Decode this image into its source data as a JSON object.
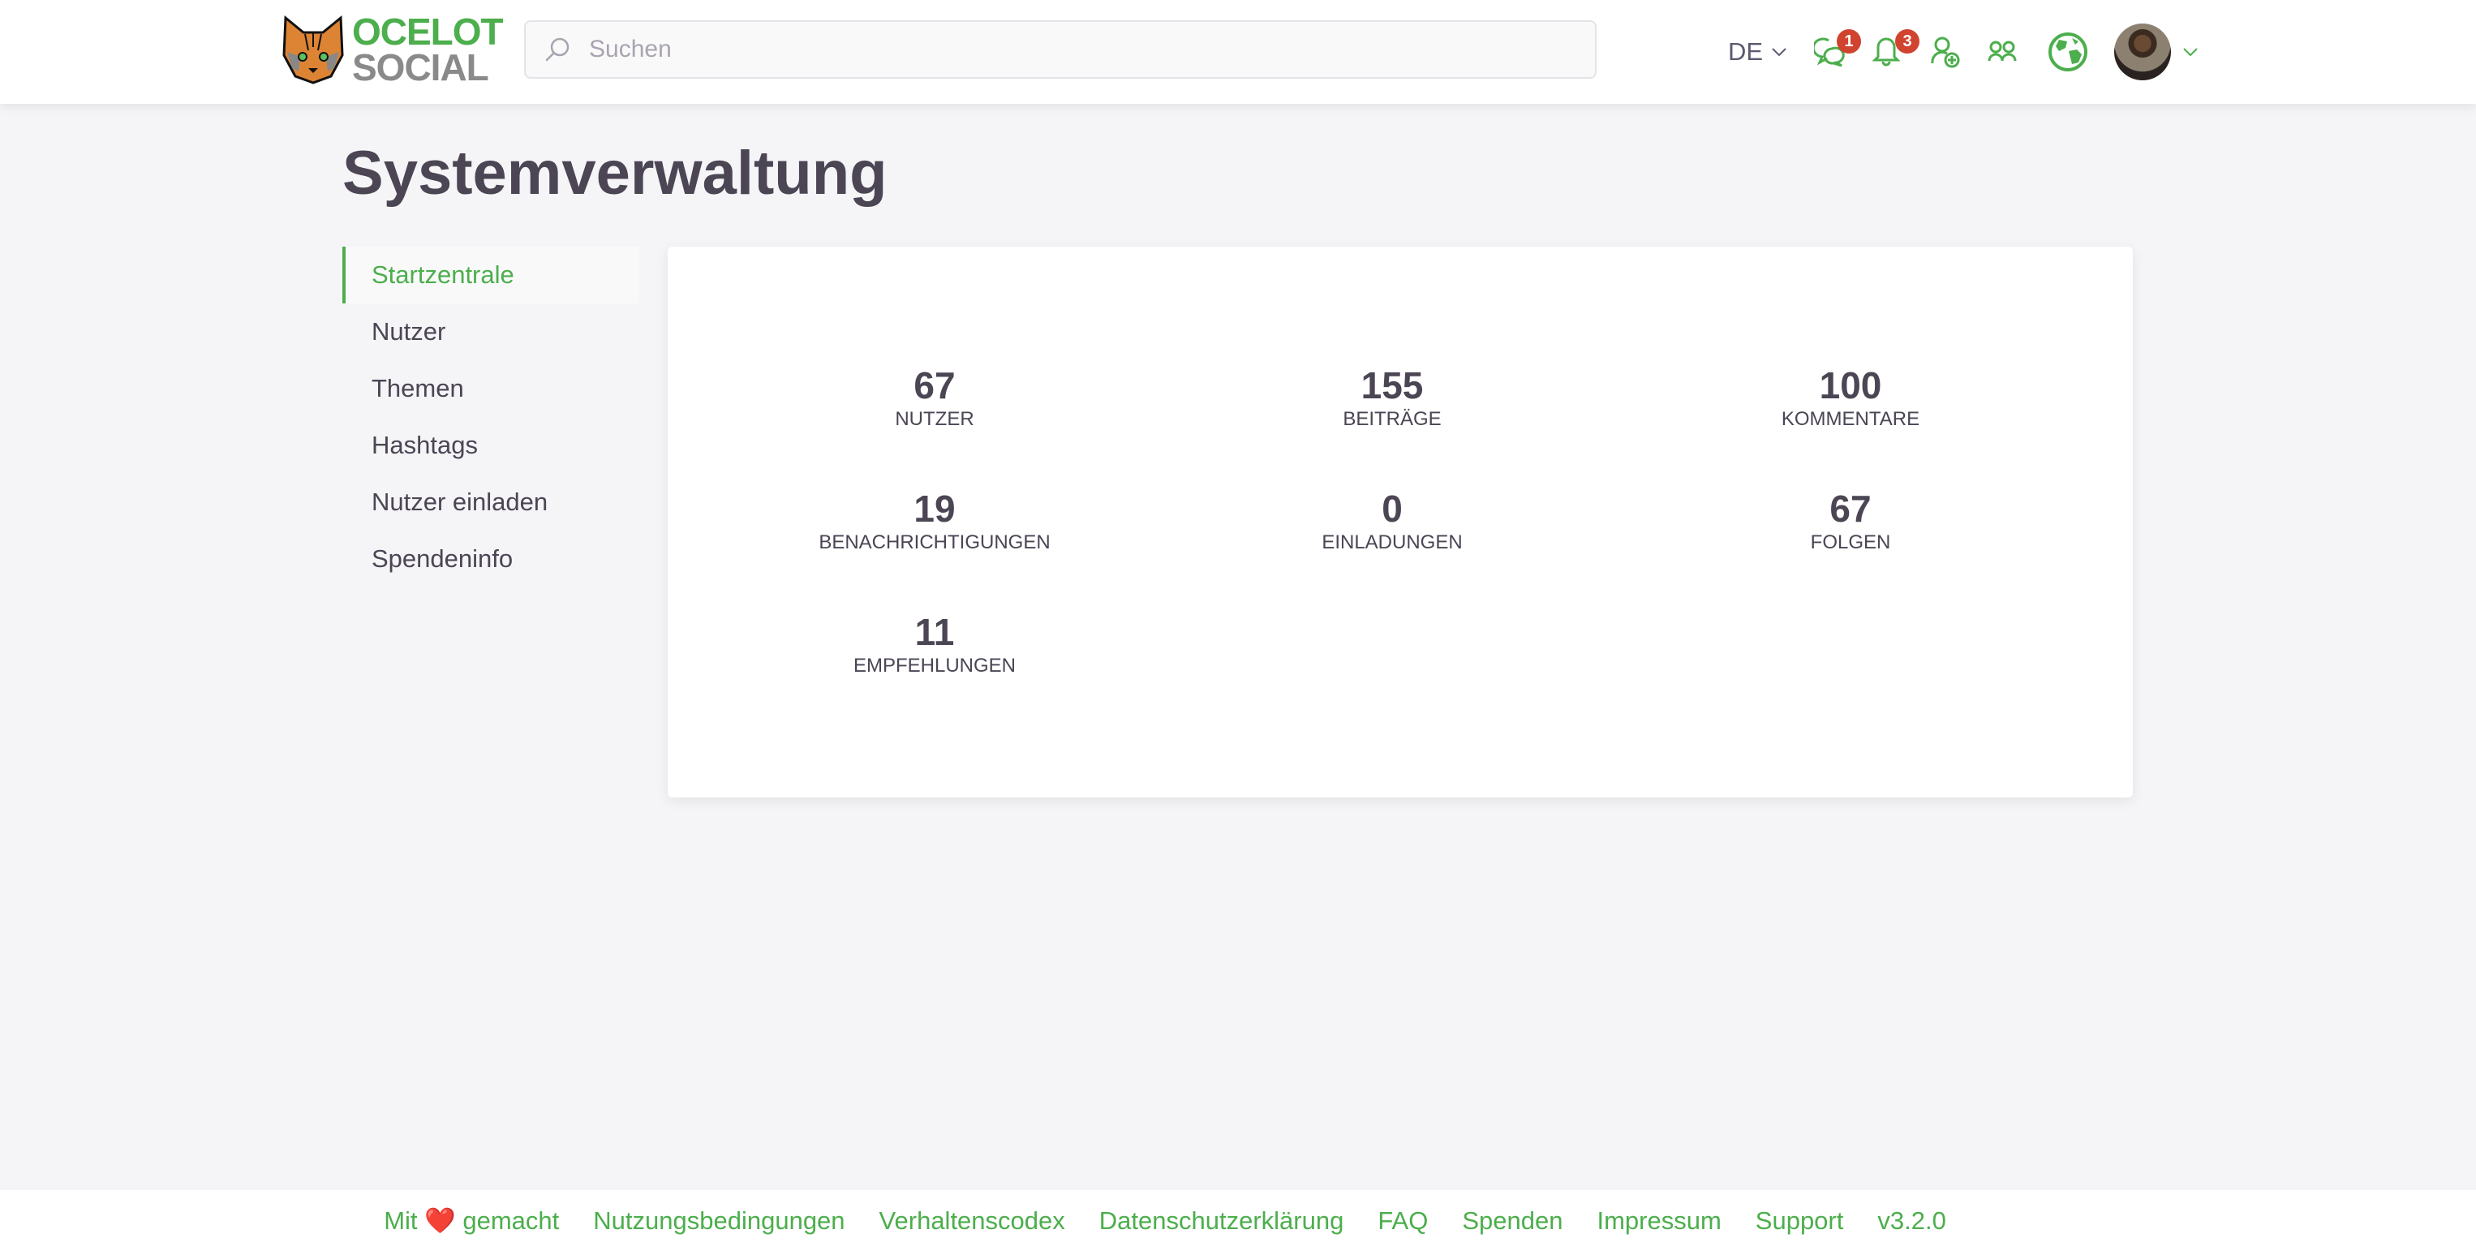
{
  "header": {
    "logo": {
      "line1": "OCELOT",
      "line2": "SOCIAL"
    },
    "search": {
      "placeholder": "Suchen",
      "value": ""
    },
    "language": "DE",
    "chat_badge": "1",
    "notifications_badge": "3",
    "accent_color": "#4cae4c",
    "badge_color": "#d0432f"
  },
  "page": {
    "title": "Systemverwaltung"
  },
  "sidebar": {
    "items": [
      {
        "label": "Startzentrale",
        "active": true
      },
      {
        "label": "Nutzer"
      },
      {
        "label": "Themen"
      },
      {
        "label": "Hashtags"
      },
      {
        "label": "Nutzer einladen"
      },
      {
        "label": "Spendeninfo"
      }
    ]
  },
  "stats": [
    {
      "value": "67",
      "label": "Nutzer"
    },
    {
      "value": "155",
      "label": "Beiträge"
    },
    {
      "value": "100",
      "label": "Kommentare"
    },
    {
      "value": "19",
      "label": "Benachrichtigungen"
    },
    {
      "value": "0",
      "label": "Einladungen"
    },
    {
      "value": "67",
      "label": "Folgen"
    },
    {
      "value": "11",
      "label": "Empfehlungen"
    }
  ],
  "footer": {
    "made_with_prefix": "Mit",
    "made_with_heart": "❤️",
    "made_with_suffix": "gemacht",
    "links": [
      "Nutzungsbedingungen",
      "Verhaltenscodex",
      "Datenschutzerklärung",
      "FAQ",
      "Spenden",
      "Impressum",
      "Support",
      "v3.2.0"
    ]
  }
}
